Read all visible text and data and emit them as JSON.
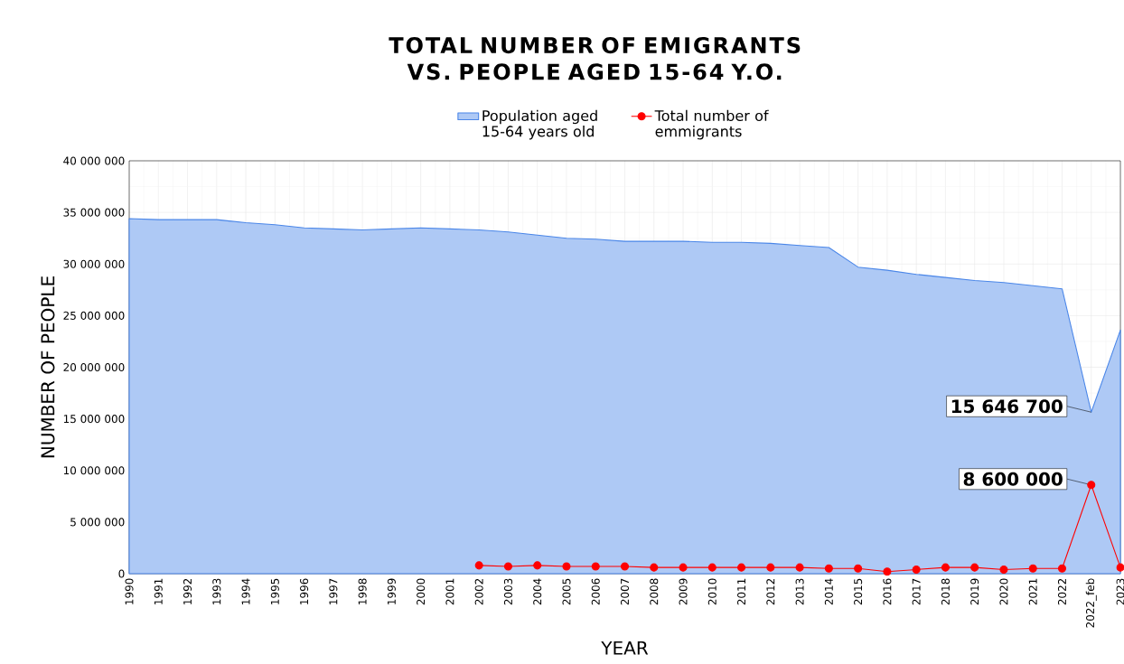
{
  "chart_data": {
    "type": "line",
    "title": "TOTAL NUMBER OF EMIGRANTS VS. PEOPLE AGED 15-64 Y.O.",
    "xlabel": "YEAR",
    "ylabel": "NUMBER OF PEOPLE",
    "categories": [
      "1990",
      "1991",
      "1992",
      "1993",
      "1994",
      "1995",
      "1996",
      "1997",
      "1998",
      "1999",
      "2000",
      "2001",
      "2002",
      "2003",
      "2004",
      "2005",
      "2006",
      "2007",
      "2008",
      "2009",
      "2010",
      "2011",
      "2012",
      "2013",
      "2014",
      "2015",
      "2016",
      "2017",
      "2018",
      "2019",
      "2020",
      "2021",
      "2022",
      "2022_feb",
      "2023"
    ],
    "series": [
      {
        "name": "Population aged 15-64 years old",
        "type": "area",
        "color": "#4a86e8",
        "values": [
          34400000,
          34300000,
          34300000,
          34300000,
          34000000,
          33800000,
          33500000,
          33400000,
          33300000,
          33400000,
          33500000,
          33400000,
          33300000,
          33100000,
          32800000,
          32500000,
          32400000,
          32200000,
          32200000,
          32200000,
          32100000,
          32100000,
          32000000,
          31800000,
          31600000,
          29700000,
          29400000,
          29000000,
          28700000,
          28400000,
          28200000,
          27900000,
          27600000,
          15646700,
          23600000
        ],
        "value_labels": [
          null,
          null,
          null,
          null,
          null,
          null,
          null,
          null,
          null,
          null,
          null,
          null,
          null,
          null,
          null,
          null,
          null,
          null,
          null,
          null,
          null,
          null,
          null,
          null,
          null,
          null,
          null,
          null,
          null,
          null,
          null,
          null,
          null,
          "15 646 700",
          null
        ]
      },
      {
        "name": "Total number of emmigrants",
        "color": "#ff0000",
        "marker": "circle",
        "values": [
          null,
          null,
          null,
          null,
          null,
          null,
          null,
          null,
          null,
          null,
          null,
          null,
          800000,
          700000,
          800000,
          700000,
          700000,
          700000,
          600000,
          600000,
          600000,
          600000,
          600000,
          600000,
          500000,
          500000,
          200000,
          400000,
          600000,
          600000,
          400000,
          500000,
          500000,
          8600000,
          600000
        ],
        "value_labels": [
          null,
          null,
          null,
          null,
          null,
          null,
          null,
          null,
          null,
          null,
          null,
          null,
          null,
          null,
          null,
          null,
          null,
          null,
          null,
          null,
          null,
          null,
          null,
          null,
          null,
          null,
          null,
          null,
          null,
          null,
          null,
          null,
          null,
          "8 600 000",
          null
        ]
      }
    ],
    "ylim": [
      0,
      40000000
    ],
    "yticks": [
      {
        "value": 0,
        "label": "0"
      },
      {
        "value": 5000000,
        "label": "5 000 000"
      },
      {
        "value": 10000000,
        "label": "10 000 000"
      },
      {
        "value": 15000000,
        "label": "15 000 000"
      },
      {
        "value": 20000000,
        "label": "20 000 000"
      },
      {
        "value": 25000000,
        "label": "25 000 000"
      },
      {
        "value": 30000000,
        "label": "30 000 000"
      },
      {
        "value": 35000000,
        "label": "35 000 000"
      },
      {
        "value": 40000000,
        "label": "40 000 000"
      }
    ],
    "grid": true,
    "legend": "top"
  }
}
